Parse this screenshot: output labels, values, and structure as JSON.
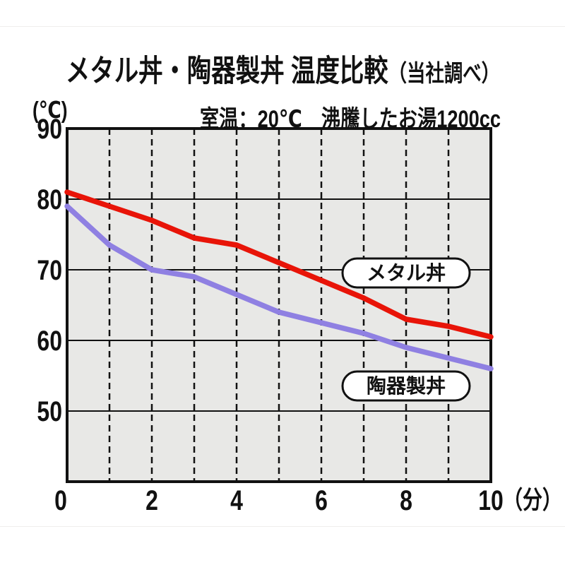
{
  "title": {
    "main": "メタル丼・陶器製丼 温度比較",
    "note": "（当社調べ）"
  },
  "conditions": "室温：20℃　沸騰したお湯1200cc",
  "y_axis_unit": "(℃)",
  "series_labels": {
    "metal": "メタル丼",
    "ceramic": "陶器製丼"
  },
  "colors": {
    "metal_line": "#e81408",
    "ceramic_line": "#8f80e2",
    "plot_background": "#e8e8e6",
    "axis": "#111111",
    "label_pill_fill": "#ffffff"
  },
  "chart_data": {
    "type": "line",
    "title": "メタル丼・陶器製丼 温度比較（当社調べ）",
    "subtitle": "室温：20℃　沸騰したお湯1200cc",
    "xlabel": "（分）",
    "ylabel": "(℃)",
    "x": [
      0,
      1,
      2,
      3,
      4,
      5,
      6,
      7,
      8,
      9,
      10
    ],
    "series": [
      {
        "name": "メタル丼",
        "color": "#e81408",
        "values": [
          81,
          79,
          77,
          74.5,
          73.5,
          71,
          68.5,
          66,
          63,
          62,
          60.5
        ]
      },
      {
        "name": "陶器製丼",
        "color": "#8f80e2",
        "values": [
          79,
          73.5,
          70,
          69,
          66.5,
          64,
          62.5,
          61,
          59,
          57.5,
          56
        ]
      }
    ],
    "xlim": [
      0,
      10
    ],
    "ylim": [
      40,
      90
    ],
    "xticks": [
      0,
      2,
      4,
      6,
      8,
      10
    ],
    "yticks": [
      90,
      80,
      70,
      60,
      50
    ],
    "x_gridlines_dashed": [
      1,
      2,
      3,
      4,
      5,
      6,
      7,
      8,
      9
    ],
    "y_gridlines_solid": [
      80,
      70,
      60,
      50
    ],
    "grid": true,
    "legend_position": "inline-labels"
  }
}
